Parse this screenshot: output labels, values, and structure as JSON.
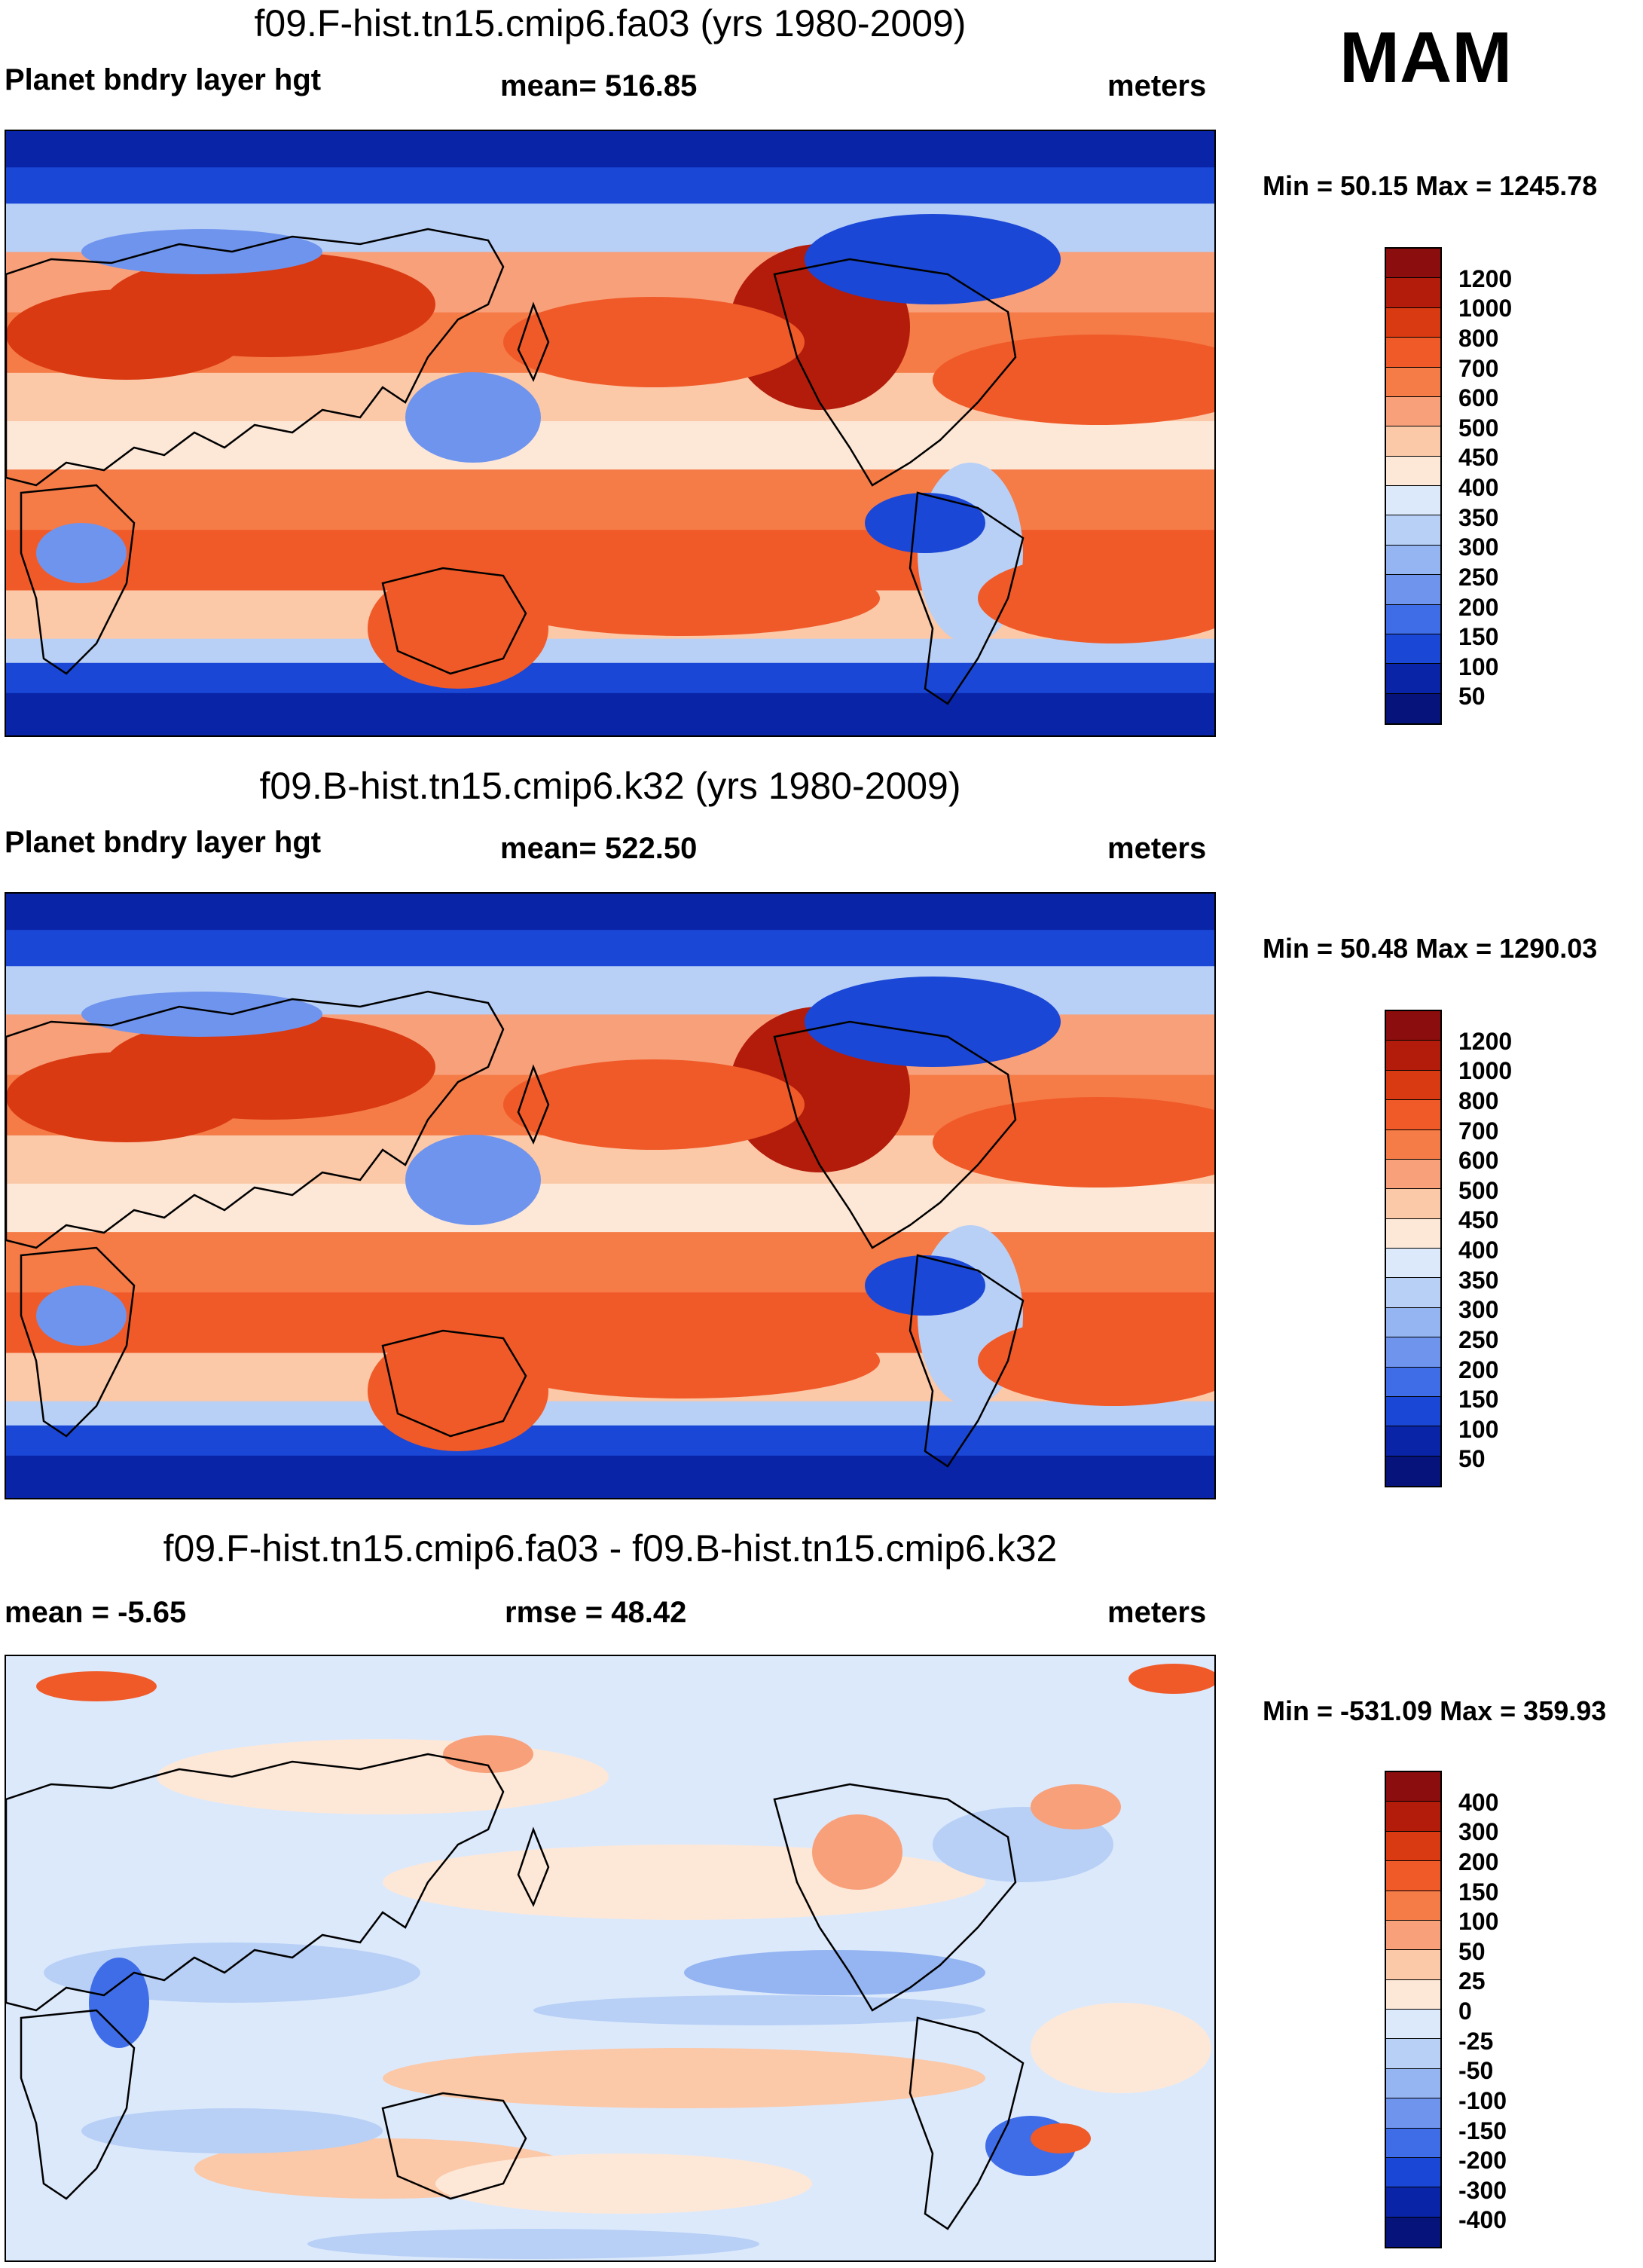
{
  "season": "MAM",
  "panels": [
    {
      "title": "f09.F-hist.tn15.cmip6.fa03 (yrs 1980-2009)",
      "left_header": "Planet bndry layer hgt",
      "center_header": "mean= 516.85",
      "right_header": "meters",
      "minmax": "Min =  50.15 Max = 1245.78",
      "colorbar_labels": [
        "1200",
        "1000",
        "800",
        "700",
        "600",
        "500",
        "450",
        "400",
        "350",
        "300",
        "250",
        "200",
        "150",
        "100",
        "50"
      ],
      "colorbar_colors": [
        "#8c0d0d",
        "#b31c0a",
        "#d93a12",
        "#f05a28",
        "#f57b47",
        "#f8a07a",
        "#fbc8a8",
        "#fde8d8",
        "#dce9fb",
        "#b8d0f6",
        "#94b4f2",
        "#6f94ee",
        "#3f6de8",
        "#1a47d6",
        "#0a24a8",
        "#05137a"
      ],
      "field_colors": [
        "#0a24a8",
        "#1a47d6",
        "#6f94ee",
        "#b8d0f6",
        "#fde8d8",
        "#fbc8a8",
        "#f8a07a",
        "#f57b47",
        "#f05a28",
        "#d93a12",
        "#b31c0a"
      ]
    },
    {
      "title": "f09.B-hist.tn15.cmip6.k32 (yrs 1980-2009)",
      "left_header": "Planet bndry layer hgt",
      "center_header": "mean= 522.50",
      "right_header": "meters",
      "minmax": "Min =  50.48 Max = 1290.03",
      "colorbar_labels": [
        "1200",
        "1000",
        "800",
        "700",
        "600",
        "500",
        "450",
        "400",
        "350",
        "300",
        "250",
        "200",
        "150",
        "100",
        "50"
      ],
      "colorbar_colors": [
        "#8c0d0d",
        "#b31c0a",
        "#d93a12",
        "#f05a28",
        "#f57b47",
        "#f8a07a",
        "#fbc8a8",
        "#fde8d8",
        "#dce9fb",
        "#b8d0f6",
        "#94b4f2",
        "#6f94ee",
        "#3f6de8",
        "#1a47d6",
        "#0a24a8",
        "#05137a"
      ],
      "field_colors": [
        "#0a24a8",
        "#1a47d6",
        "#6f94ee",
        "#b8d0f6",
        "#fde8d8",
        "#fbc8a8",
        "#f8a07a",
        "#f57b47",
        "#f05a28",
        "#d93a12",
        "#b31c0a"
      ]
    },
    {
      "title": "f09.F-hist.tn15.cmip6.fa03 - f09.B-hist.tn15.cmip6.k32",
      "left_header": "mean =  -5.65",
      "center_header": "rmse =  48.42",
      "right_header": "meters",
      "minmax": "Min = -531.09 Max = 359.93",
      "colorbar_labels": [
        "400",
        "300",
        "200",
        "150",
        "100",
        "50",
        "25",
        "0",
        "-25",
        "-50",
        "-100",
        "-150",
        "-200",
        "-300",
        "-400"
      ],
      "colorbar_colors": [
        "#8c0d0d",
        "#b31c0a",
        "#d93a12",
        "#f05a28",
        "#f57b47",
        "#f8a07a",
        "#fbc8a8",
        "#fde8d8",
        "#dce9fb",
        "#b8d0f6",
        "#94b4f2",
        "#6f94ee",
        "#3f6de8",
        "#1a47d6",
        "#0a24a8",
        "#05137a"
      ],
      "field_colors": [
        "#3f6de8",
        "#94b4f2",
        "#b8d0f6",
        "#dce9fb",
        "#fde8d8",
        "#fbc8a8",
        "#f8a07a",
        "#f05a28"
      ]
    }
  ]
}
